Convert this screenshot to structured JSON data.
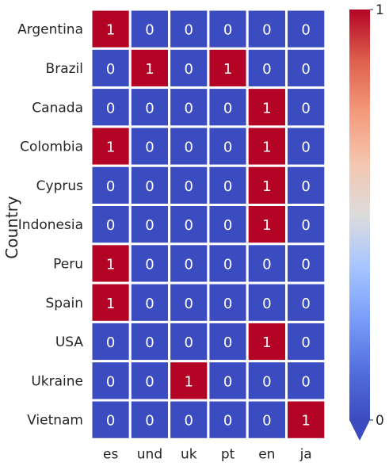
{
  "chart_data": {
    "type": "heatmap",
    "xlabel": "",
    "ylabel": "Country",
    "x_categories": [
      "es",
      "und",
      "uk",
      "pt",
      "en",
      "ja"
    ],
    "y_categories": [
      "Argentina",
      "Brazil",
      "Canada",
      "Colombia",
      "Cyprus",
      "Indonesia",
      "Peru",
      "Spain",
      "USA",
      "Ukraine",
      "Vietnam"
    ],
    "values": [
      [
        1,
        0,
        0,
        0,
        0,
        0
      ],
      [
        0,
        1,
        0,
        1,
        0,
        0
      ],
      [
        0,
        0,
        0,
        0,
        1,
        0
      ],
      [
        1,
        0,
        0,
        0,
        1,
        0
      ],
      [
        0,
        0,
        0,
        0,
        1,
        0
      ],
      [
        0,
        0,
        0,
        0,
        1,
        0
      ],
      [
        1,
        0,
        0,
        0,
        0,
        0
      ],
      [
        1,
        0,
        0,
        0,
        0,
        0
      ],
      [
        0,
        0,
        0,
        0,
        1,
        0
      ],
      [
        0,
        0,
        1,
        0,
        0,
        0
      ],
      [
        0,
        0,
        0,
        0,
        0,
        1
      ]
    ],
    "colormap": "coolwarm",
    "vmin": 0,
    "vmax": 1,
    "colorbar_ticks": [
      "0",
      "1"
    ],
    "colorbar_extend": "min",
    "annotated": true,
    "colors": {
      "low": "#3b4cc0",
      "high": "#b40426",
      "gridline": "#ffffff",
      "annotation": "#ffffff"
    }
  }
}
